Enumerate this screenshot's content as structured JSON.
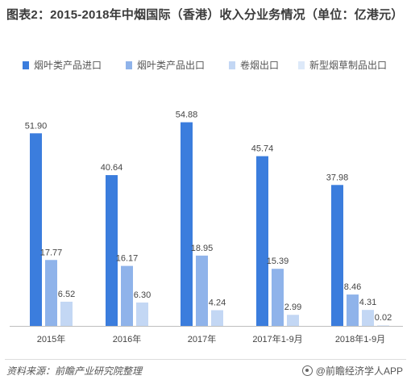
{
  "title": "图表2：2015-2018年中烟国际（香港）收入分业务情况（单位：亿港元）",
  "legend": [
    {
      "label": "烟叶类产品进口",
      "color": "#3b7ddd"
    },
    {
      "label": "烟叶类产品出口",
      "color": "#8fb3ea"
    },
    {
      "label": "卷烟出口",
      "color": "#c3d7f4"
    },
    {
      "label": "新型烟草制品出口",
      "color": "#dde9f9"
    }
  ],
  "footer": {
    "source": "资料来源：前瞻产业研究院整理",
    "brand": "@前瞻经济学人APP"
  },
  "chart_data": {
    "type": "bar",
    "title": "图表2：2015-2018年中烟国际（香港）收入分业务情况（单位：亿港元）",
    "categories": [
      "2015年",
      "2016年",
      "2017年",
      "2017年1-9月",
      "2018年1-9月"
    ],
    "series": [
      {
        "name": "烟叶类产品进口",
        "color": "#3b7ddd",
        "values": [
          51.9,
          40.64,
          54.88,
          45.74,
          37.98
        ]
      },
      {
        "name": "烟叶类产品出口",
        "color": "#8fb3ea",
        "values": [
          17.77,
          16.17,
          18.95,
          15.39,
          8.46
        ]
      },
      {
        "name": "卷烟出口",
        "color": "#c3d7f4",
        "values": [
          6.52,
          6.3,
          4.24,
          2.99,
          4.31
        ]
      },
      {
        "name": "新型烟草制品出口",
        "color": "#dde9f9",
        "values": [
          null,
          null,
          null,
          null,
          0.02
        ]
      }
    ],
    "value_labels": [
      [
        "51.90",
        "40.64",
        "54.88",
        "45.74",
        "37.98"
      ],
      [
        "17.77",
        "16.17",
        "18.95",
        "15.39",
        "8.46"
      ],
      [
        "6.52",
        "6.30",
        "4.24",
        "2.99",
        "4.31"
      ],
      [
        "",
        "",
        "",
        "",
        "0.02"
      ]
    ],
    "ylim": [
      0,
      60
    ],
    "grid": false,
    "legend_position": "top"
  }
}
